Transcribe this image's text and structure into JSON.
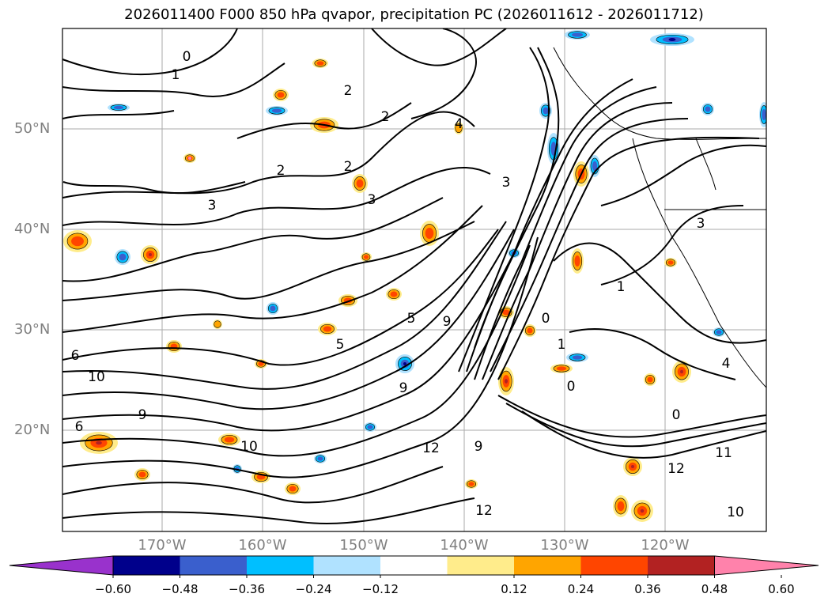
{
  "title": "2026011400 F000 850 hPa qvapor, precipitation PC (2026011612 - 2026011712)",
  "lat_labels": [
    "50°N",
    "40°N",
    "30°N",
    "20°N"
  ],
  "lon_labels": [
    "170°W",
    "160°W",
    "150°W",
    "140°W",
    "130°W",
    "120°W"
  ],
  "colorbar": {
    "colors": [
      "#9932cc",
      "#00008b",
      "#3a5fcd",
      "#00bfff",
      "#b0e2ff",
      "#ffffff",
      "#ffec8b",
      "#ffa500",
      "#ff4500",
      "#b22222",
      "#ff82ab"
    ],
    "ticks": [
      "−0.60",
      "−0.48",
      "−0.36",
      "−0.24",
      "−0.12",
      "0.12",
      "0.24",
      "0.36",
      "0.48",
      "0.60"
    ]
  },
  "contour_labels": [
    "0",
    "1",
    "2",
    "2",
    "2",
    "2",
    "3",
    "3",
    "3",
    "4",
    "5",
    "5",
    "6",
    "9",
    "9",
    "10",
    "12",
    "12",
    "10",
    "9",
    "1",
    "0",
    "0",
    "0",
    "1",
    "3",
    "4",
    "11",
    "12",
    "10",
    "6",
    "9"
  ]
}
